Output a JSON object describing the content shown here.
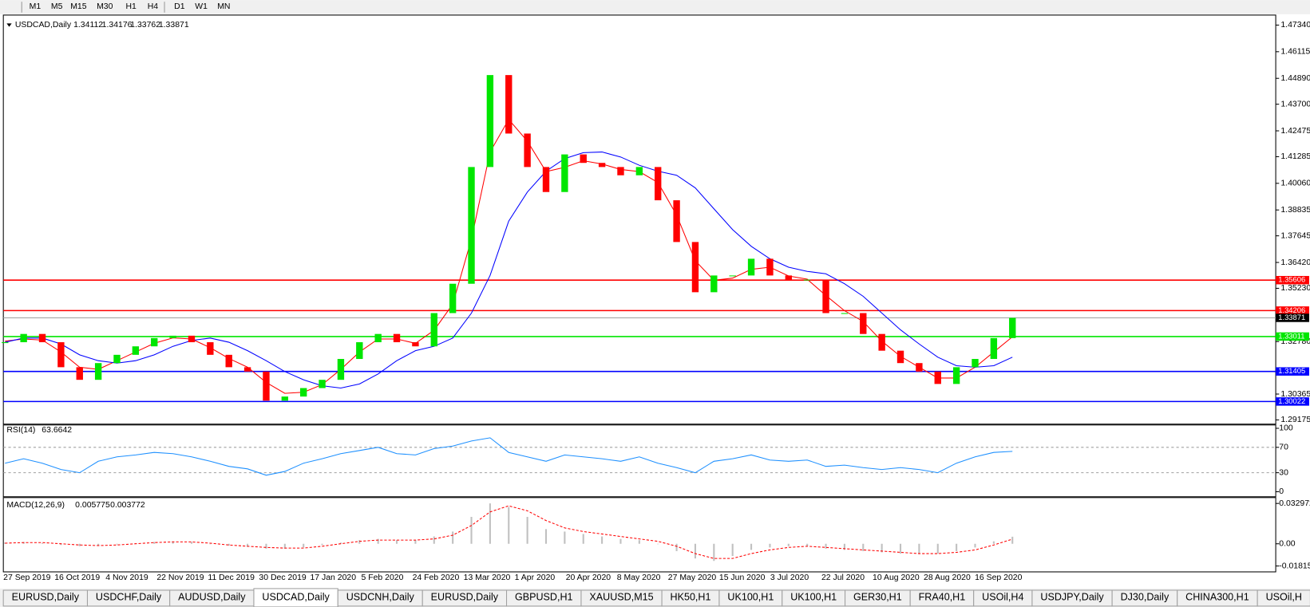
{
  "toolbar": {
    "timeframes": [
      "M1",
      "M5",
      "M15",
      "M30",
      "H1",
      "H4",
      "D1",
      "W1",
      "MN"
    ]
  },
  "chart_data": [
    {
      "type": "candlestick",
      "title": "USDCAD,Daily",
      "header_values": [
        1.34112,
        1.34176,
        1.33762,
        1.33871
      ],
      "up_color": "#00e600",
      "down_color": "#ff0000",
      "close": [
        1.3275,
        1.3313,
        1.3275,
        1.316,
        1.3102,
        1.3179,
        1.3217,
        1.3256,
        1.3294,
        1.3305,
        1.3275,
        1.3217,
        1.316,
        1.314,
        1.3006,
        1.3025,
        1.3064,
        1.3102,
        1.3198,
        1.3275,
        1.3313,
        1.3275,
        1.3256,
        1.3409,
        1.3544,
        1.4081,
        1.4504,
        1.4235,
        1.4081,
        1.3966,
        1.4139,
        1.41,
        1.4081,
        1.4043,
        1.4081,
        1.3928,
        1.3736,
        1.3505,
        1.3582,
        1.3582,
        1.3659,
        1.3582,
        1.3563,
        1.3563,
        1.3409,
        1.3409,
        1.3313,
        1.3236,
        1.3179,
        1.314,
        1.3083,
        1.316,
        1.3198,
        1.3294,
        1.3387
      ],
      "moving_averages": [
        {
          "color": "#ff0000",
          "values": [
            1.328,
            1.329,
            1.3285,
            1.323,
            1.316,
            1.315,
            1.319,
            1.323,
            1.327,
            1.3295,
            1.329,
            1.325,
            1.32,
            1.316,
            1.309,
            1.304,
            1.3045,
            1.308,
            1.315,
            1.323,
            1.329,
            1.329,
            1.327,
            1.333,
            1.345,
            1.375,
            1.415,
            1.43,
            1.42,
            1.406,
            1.408,
            1.411,
            1.4095,
            1.407,
            1.406,
            1.401,
            1.386,
            1.365,
            1.356,
            1.357,
            1.361,
            1.362,
            1.358,
            1.3565,
            1.349,
            1.342,
            1.337,
            1.328,
            1.321,
            1.316,
            1.311,
            1.311,
            1.316,
            1.323,
            1.33
          ]
        },
        {
          "color": "#0000ff",
          "values": [
            1.3275,
            1.3294,
            1.3294,
            1.3267,
            1.3217,
            1.319,
            1.3179,
            1.319,
            1.3217,
            1.3256,
            1.3283,
            1.3294,
            1.3275,
            1.3236,
            1.319,
            1.314,
            1.3102,
            1.3075,
            1.3064,
            1.3083,
            1.3129,
            1.319,
            1.3236,
            1.3256,
            1.3294,
            1.3409,
            1.3582,
            1.3832,
            1.3966,
            1.4062,
            1.412,
            1.4147,
            1.415,
            1.4127,
            1.4089,
            1.4062,
            1.4043,
            1.3985,
            1.3889,
            1.3793,
            1.3716,
            1.3659,
            1.362,
            1.3601,
            1.359,
            1.3544,
            1.3486,
            1.3409,
            1.3332,
            1.3267,
            1.3206,
            1.3167,
            1.316,
            1.3167,
            1.3206
          ]
        }
      ],
      "ylim": [
        1.2902,
        1.478
      ],
      "yticks": [
        {
          "value": 1.4734,
          "label": "1.47340"
        },
        1.46115,
        {
          "value": 1.4489,
          "label": "1.44890"
        },
        {
          "value": 1.437,
          "label": "1.43700"
        },
        1.42475,
        1.41285,
        {
          "value": 1.4006,
          "label": "1.40060"
        },
        1.38835,
        1.37645,
        {
          "value": 1.3642,
          "label": "1.36420"
        },
        {
          "value": 1.3523,
          "label": "1.35230"
        },
        {
          "value": 1.3278,
          "label": "1.32780"
        },
        1.30365,
        1.29175
      ],
      "levels": [
        {
          "value": 1.35606,
          "color": "#ff0000"
        },
        {
          "value": 1.34206,
          "color": "#ff0000"
        },
        {
          "value": 1.33011,
          "color": "#00e600"
        },
        {
          "value": 1.31405,
          "color": "#0000ff"
        },
        {
          "value": 1.30022,
          "color": "#0000ff"
        }
      ],
      "current_price": 1.33871,
      "date_labels": [
        "27 Sep 2019",
        "16 Oct 2019",
        "4 Nov 2019",
        "22 Nov 2019",
        "11 Dec 2019",
        "30 Dec 2019",
        "17 Jan 2020",
        "5 Feb 2020",
        "24 Feb 2020",
        "13 Mar 2020",
        "1 Apr 2020",
        "20 Apr 2020",
        "8 May 2020",
        "27 May 2020",
        "15 Jun 2020",
        "3 Jul 2020",
        "22 Jul 2020",
        "10 Aug 2020",
        "28 Aug 2020",
        "16 Sep 2020"
      ]
    },
    {
      "type": "rsi",
      "title": "RSI(14)",
      "current": 63.6642,
      "color": "#1e90ff",
      "values": [
        45,
        52,
        45,
        35,
        30,
        48,
        55,
        58,
        62,
        60,
        55,
        48,
        40,
        36,
        26,
        32,
        45,
        52,
        60,
        65,
        70,
        60,
        58,
        68,
        72,
        80,
        85,
        62,
        55,
        48,
        58,
        55,
        52,
        48,
        55,
        45,
        38,
        30,
        48,
        52,
        58,
        50,
        48,
        50,
        40,
        42,
        38,
        35,
        38,
        35,
        30,
        45,
        55,
        62,
        63.6642
      ],
      "ylim": [
        0,
        100
      ],
      "yticks": [
        100,
        70,
        30,
        0
      ],
      "levels": [
        70,
        30
      ]
    },
    {
      "type": "macd",
      "title": "MACD(12,26,9)",
      "current": [
        0.005775,
        0.003772
      ],
      "histogram_color": "#c0c0c0",
      "signal_color": "#ff0000",
      "histogram": [
        0.001,
        0.0015,
        0.0005,
        -0.001,
        -0.002,
        -0.0015,
        -0.0005,
        0.0005,
        0.0015,
        0.002,
        0.0015,
        0,
        -0.0015,
        -0.0025,
        -0.004,
        -0.004,
        -0.003,
        -0.001,
        0.001,
        0.003,
        0.004,
        0.003,
        0.003,
        0.006,
        0.01,
        0.022,
        0.033,
        0.03,
        0.022,
        0.012,
        0.01,
        0.008,
        0.006,
        0.004,
        0.003,
        0,
        -0.006,
        -0.012,
        -0.014,
        -0.01,
        -0.005,
        -0.003,
        -0.002,
        -0.002,
        -0.004,
        -0.005,
        -0.006,
        -0.007,
        -0.008,
        -0.008,
        -0.008,
        -0.006,
        -0.003,
        0.002,
        0.005775
      ],
      "signal": [
        0.0005,
        0.001,
        0.001,
        0,
        -0.001,
        -0.0015,
        -0.001,
        0,
        0.001,
        0.0015,
        0.0015,
        0.0005,
        -0.001,
        -0.002,
        -0.003,
        -0.0035,
        -0.0035,
        -0.002,
        0,
        0.002,
        0.003,
        0.003,
        0.003,
        0.004,
        0.007,
        0.015,
        0.026,
        0.031,
        0.027,
        0.019,
        0.013,
        0.01,
        0.008,
        0.006,
        0.004,
        0.002,
        -0.002,
        -0.008,
        -0.012,
        -0.012,
        -0.008,
        -0.005,
        -0.003,
        -0.002,
        -0.003,
        -0.004,
        -0.005,
        -0.006,
        -0.007,
        -0.008,
        -0.008,
        -0.007,
        -0.005,
        -0.001,
        0.003772
      ],
      "ylim": [
        -0.0216,
        0.0364
      ],
      "yticks": [
        0.032972,
        {
          "value": 0,
          "label": "0.00"
        },
        -0.018154
      ]
    }
  ],
  "tabs": {
    "items": [
      "EURUSD,Daily",
      "USDCHF,Daily",
      "AUDUSD,Daily",
      "USDCAD,Daily",
      "USDCNH,Daily",
      "EURUSD,Daily",
      "GBPUSD,H1",
      "XAUUSD,M15",
      "HK50,H1",
      "UK100,H1",
      "UK100,H1",
      "GER30,H1",
      "FRA40,H1",
      "USOil,H4",
      "USDJPY,Daily",
      "DJ30,Daily",
      "CHINA300,H1",
      "USOil,H"
    ],
    "active": 3
  }
}
